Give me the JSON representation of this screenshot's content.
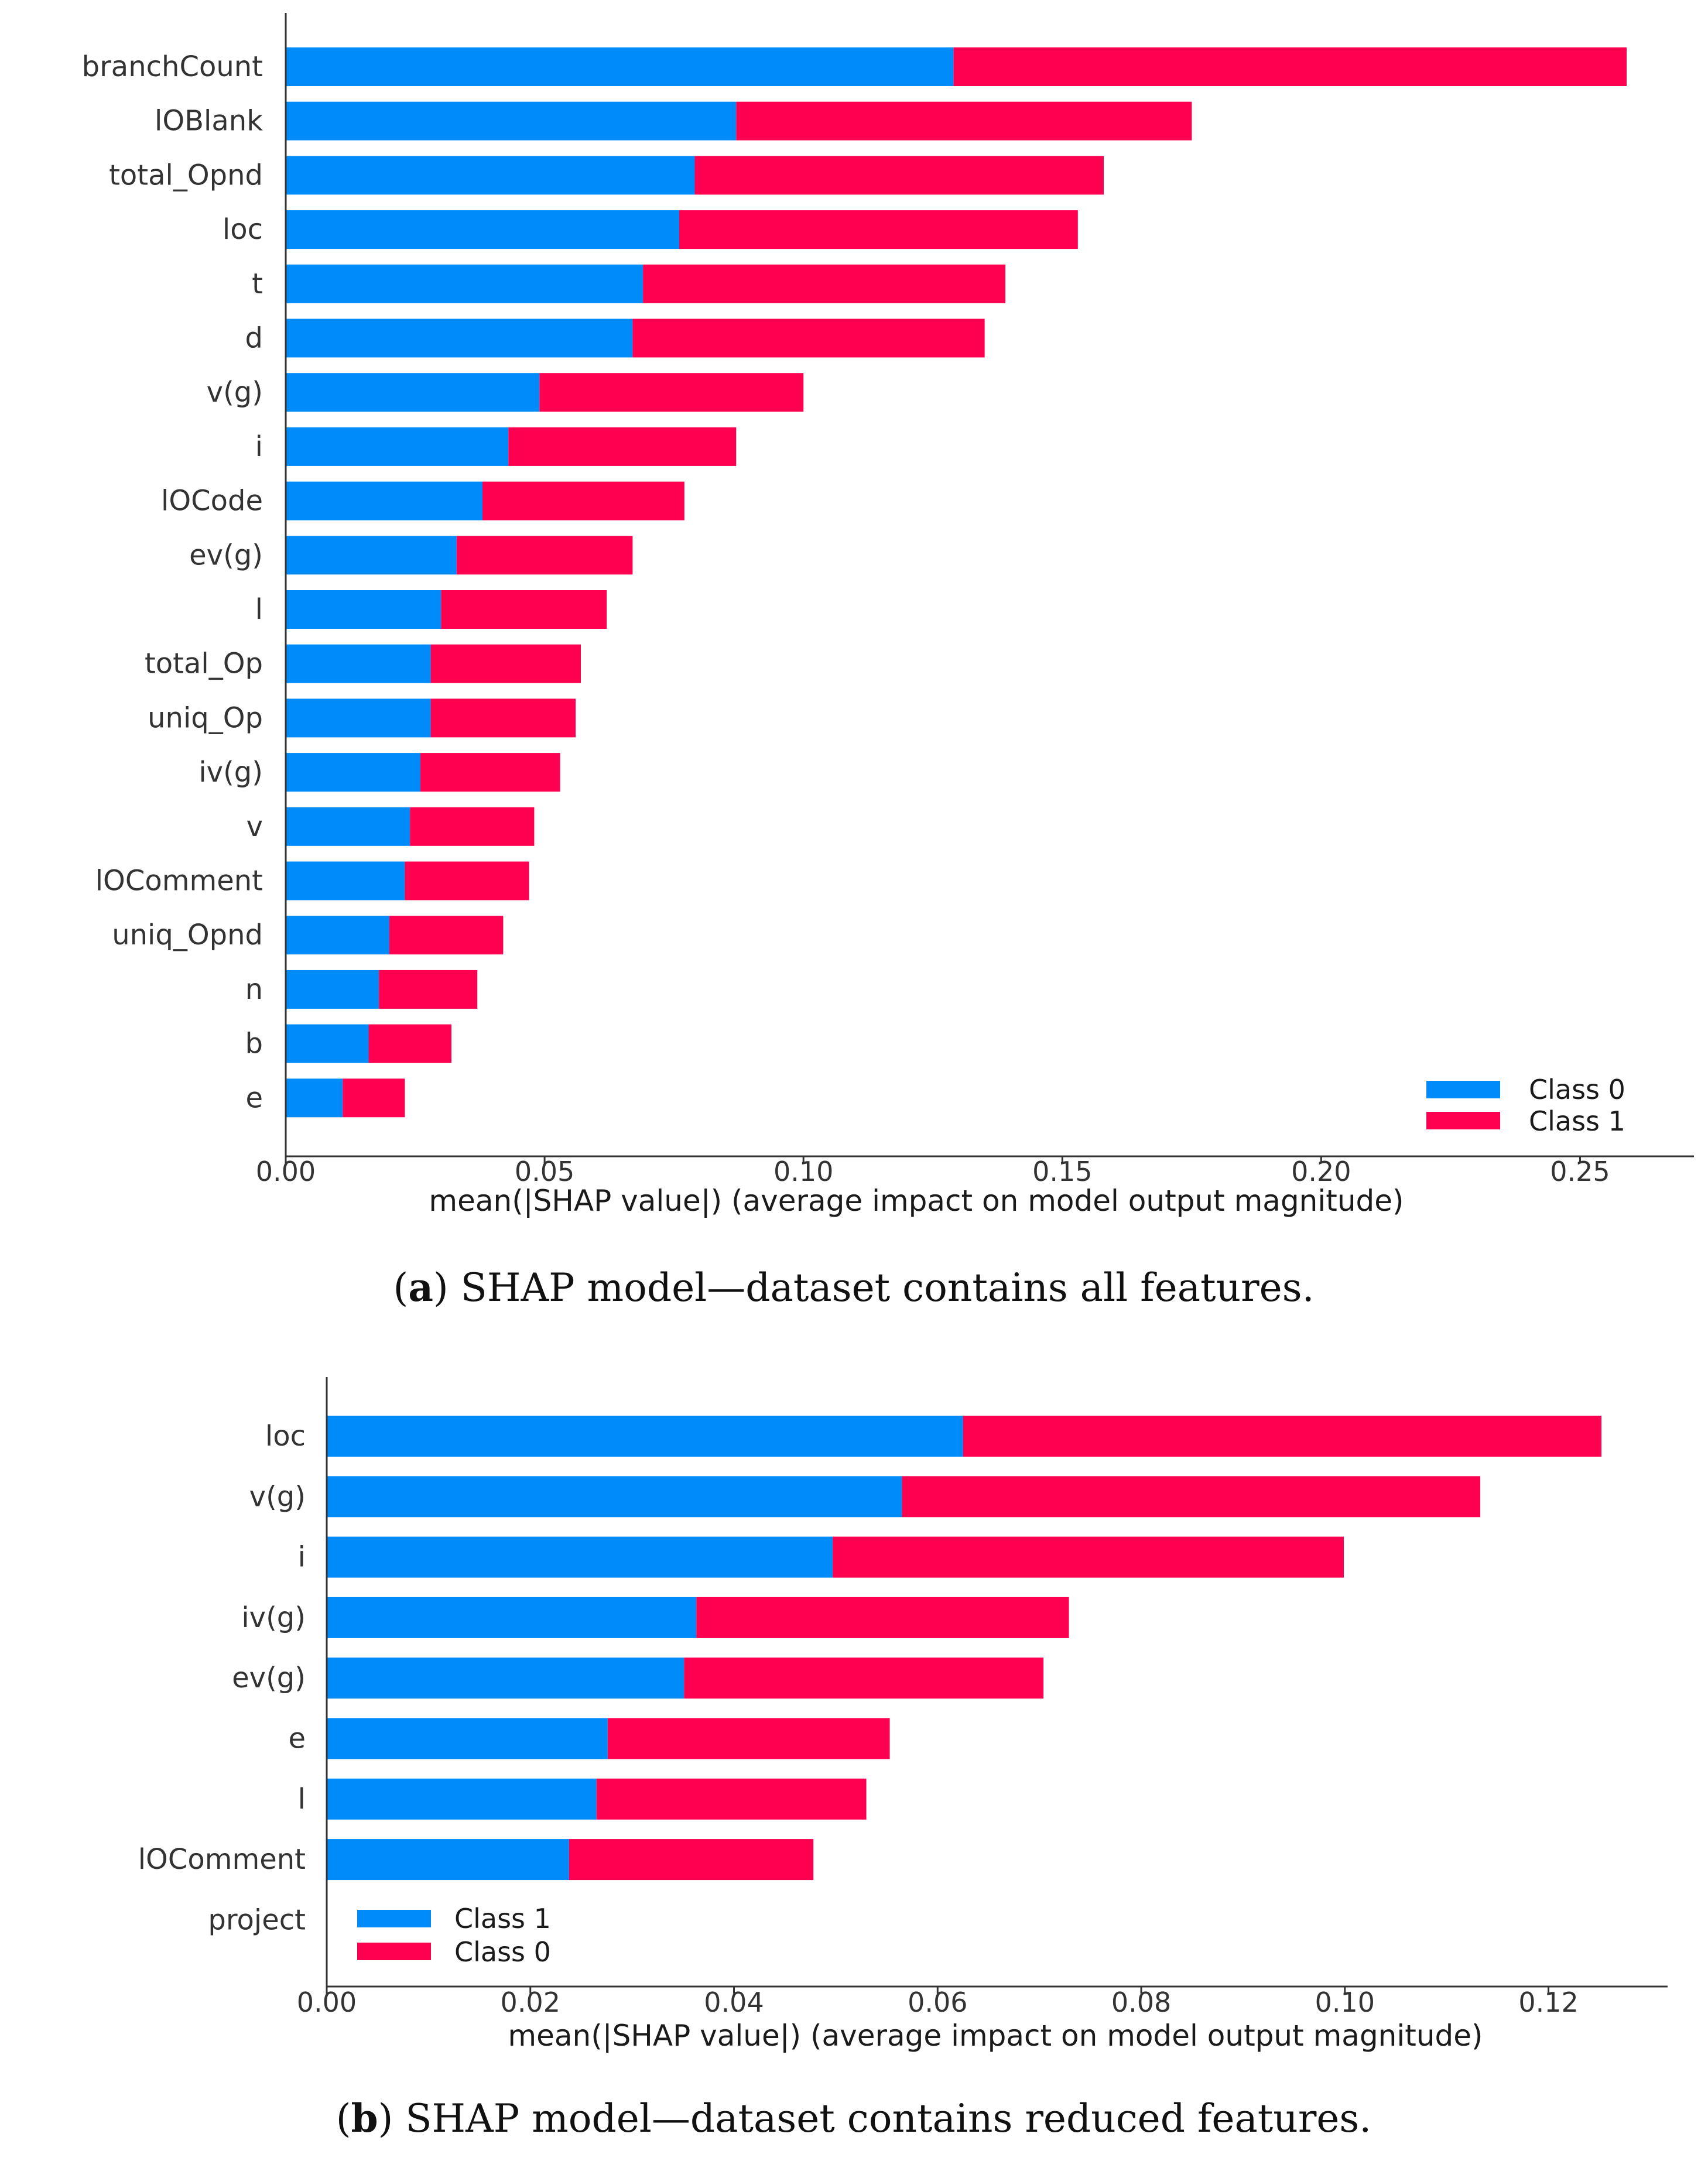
{
  "colors": {
    "blue": "#008bfb",
    "red": "#ff0051",
    "axis": "#333333"
  },
  "chart_data": [
    {
      "type": "bar",
      "orientation": "horizontal",
      "stacked": true,
      "categories": [
        "branchCount",
        "lOBlank",
        "total_Opnd",
        "loc",
        "t",
        "d",
        "v(g)",
        "i",
        "lOCode",
        "ev(g)",
        "l",
        "total_Op",
        "uniq_Op",
        "iv(g)",
        "v",
        "lOComment",
        "uniq_Opnd",
        "n",
        "b",
        "e"
      ],
      "series": [
        {
          "name": "Class 0",
          "color": "#008bfb",
          "values": [
            0.129,
            0.087,
            0.079,
            0.076,
            0.069,
            0.067,
            0.049,
            0.043,
            0.038,
            0.033,
            0.03,
            0.028,
            0.028,
            0.026,
            0.024,
            0.023,
            0.02,
            0.018,
            0.016,
            0.011
          ]
        },
        {
          "name": "Class 1",
          "color": "#ff0051",
          "values": [
            0.13,
            0.088,
            0.079,
            0.077,
            0.07,
            0.068,
            0.051,
            0.044,
            0.039,
            0.034,
            0.032,
            0.029,
            0.028,
            0.027,
            0.024,
            0.024,
            0.022,
            0.019,
            0.016,
            0.012
          ]
        }
      ],
      "xlim": [
        0,
        0.272
      ],
      "xticks": [
        "0.00",
        "0.05",
        "0.10",
        "0.15",
        "0.20",
        "0.25"
      ],
      "xtick_values": [
        0,
        0.05,
        0.1,
        0.15,
        0.2,
        0.25
      ],
      "xlabel": "mean(|SHAP value|) (average impact on model output magnitude)",
      "legend": {
        "position": "bottom-right",
        "labels": [
          "Class 0",
          "Class 1"
        ]
      }
    },
    {
      "type": "bar",
      "orientation": "horizontal",
      "stacked": true,
      "categories": [
        "loc",
        "v(g)",
        "i",
        "iv(g)",
        "ev(g)",
        "e",
        "l",
        "lOComment",
        "project"
      ],
      "series": [
        {
          "name": "Class 1",
          "color": "#008bfb",
          "values": [
            0.0625,
            0.0565,
            0.0497,
            0.0363,
            0.0351,
            0.0276,
            0.0265,
            0.0238,
            0
          ]
        },
        {
          "name": "Class 0",
          "color": "#ff0051",
          "values": [
            0.0627,
            0.0568,
            0.0502,
            0.0366,
            0.0353,
            0.0277,
            0.0265,
            0.024,
            0
          ]
        }
      ],
      "xlim": [
        0,
        0.1317
      ],
      "xticks": [
        "0.00",
        "0.02",
        "0.04",
        "0.06",
        "0.08",
        "0.10",
        "0.12"
      ],
      "xtick_values": [
        0,
        0.02,
        0.04,
        0.06,
        0.08,
        0.1,
        0.12
      ],
      "xlabel": "mean(|SHAP value|) (average impact on model output magnitude)",
      "legend": {
        "position": "bottom-left",
        "labels": [
          "Class 1",
          "Class 0"
        ]
      }
    }
  ],
  "captions": [
    {
      "letter": "a",
      "open": "(",
      "close": ")",
      "text": " SHAP model—dataset contains all features."
    },
    {
      "letter": "b",
      "open": "(",
      "close": ")",
      "text": " SHAP model—dataset contains reduced features."
    }
  ]
}
